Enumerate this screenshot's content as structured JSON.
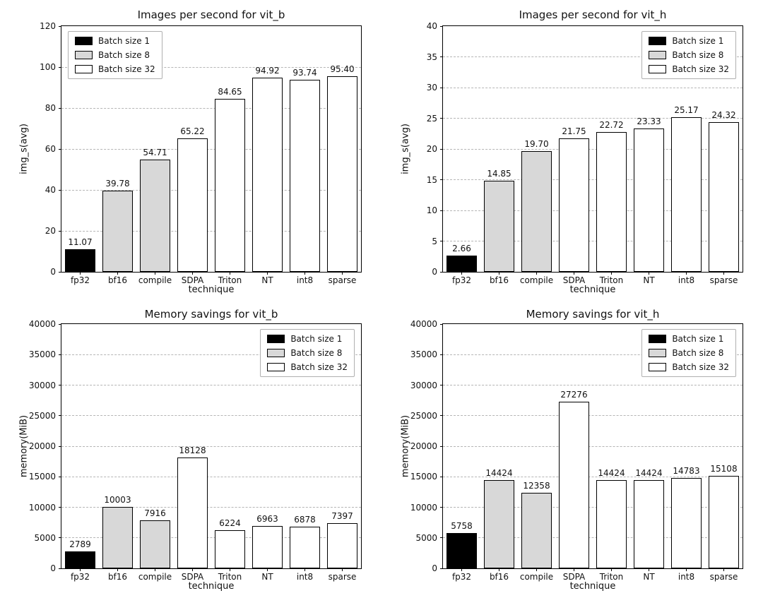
{
  "page": {
    "background": "#ffffff"
  },
  "colors": {
    "batch1": "#000000",
    "batch8": "#d8d8d8",
    "batch32": "#ffffff",
    "bar_edge": "#000000",
    "grid": "#b5b5b5"
  },
  "legend": {
    "entries": [
      {
        "label": "Batch size 1",
        "color_key": "batch1"
      },
      {
        "label": "Batch size 8",
        "color_key": "batch8"
      },
      {
        "label": "Batch size 32",
        "color_key": "batch32"
      }
    ]
  },
  "chart_data": [
    {
      "type": "bar",
      "title": "Images per second for vit_b",
      "xlabel": "technique",
      "ylabel": "img_s(avg)",
      "categories": [
        "fp32",
        "bf16",
        "compile",
        "SDPA",
        "Triton",
        "NT",
        "int8",
        "sparse"
      ],
      "values": [
        11.07,
        39.78,
        54.71,
        65.22,
        84.65,
        94.92,
        93.74,
        95.4
      ],
      "value_labels": [
        "11.07",
        "39.78",
        "54.71",
        "65.22",
        "84.65",
        "94.92",
        "93.74",
        "95.40"
      ],
      "bar_batch": [
        "batch1",
        "batch8",
        "batch8",
        "batch32",
        "batch32",
        "batch32",
        "batch32",
        "batch32"
      ],
      "ylim": [
        0,
        120
      ],
      "yticks": [
        0,
        20,
        40,
        60,
        80,
        100,
        120
      ],
      "grid": true,
      "legend_position": "top-left"
    },
    {
      "type": "bar",
      "title": "Images per second for vit_h",
      "xlabel": "technique",
      "ylabel": "img_s(avg)",
      "categories": [
        "fp32",
        "bf16",
        "compile",
        "SDPA",
        "Triton",
        "NT",
        "int8",
        "sparse"
      ],
      "values": [
        2.66,
        14.85,
        19.7,
        21.75,
        22.72,
        23.33,
        25.17,
        24.32
      ],
      "value_labels": [
        "2.66",
        "14.85",
        "19.70",
        "21.75",
        "22.72",
        "23.33",
        "25.17",
        "24.32"
      ],
      "bar_batch": [
        "batch1",
        "batch8",
        "batch8",
        "batch32",
        "batch32",
        "batch32",
        "batch32",
        "batch32"
      ],
      "ylim": [
        0,
        40
      ],
      "yticks": [
        0,
        5,
        10,
        15,
        20,
        25,
        30,
        35,
        40
      ],
      "grid": true,
      "legend_position": "top-right"
    },
    {
      "type": "bar",
      "title": "Memory savings for vit_b",
      "xlabel": "technique",
      "ylabel": "memory(MiB)",
      "categories": [
        "fp32",
        "bf16",
        "compile",
        "SDPA",
        "Triton",
        "NT",
        "int8",
        "sparse"
      ],
      "values": [
        2789,
        10003,
        7916,
        18128,
        6224,
        6963,
        6878,
        7397
      ],
      "value_labels": [
        "2789",
        "10003",
        "7916",
        "18128",
        "6224",
        "6963",
        "6878",
        "7397"
      ],
      "bar_batch": [
        "batch1",
        "batch8",
        "batch8",
        "batch32",
        "batch32",
        "batch32",
        "batch32",
        "batch32"
      ],
      "ylim": [
        0,
        40000
      ],
      "yticks": [
        0,
        5000,
        10000,
        15000,
        20000,
        25000,
        30000,
        35000,
        40000
      ],
      "grid": true,
      "legend_position": "top-right"
    },
    {
      "type": "bar",
      "title": "Memory savings for vit_h",
      "xlabel": "technique",
      "ylabel": "memory(MiB)",
      "categories": [
        "fp32",
        "bf16",
        "compile",
        "SDPA",
        "Triton",
        "NT",
        "int8",
        "sparse"
      ],
      "values": [
        5758,
        14424,
        12358,
        27276,
        14424,
        14424,
        14783,
        15108
      ],
      "value_labels": [
        "5758",
        "14424",
        "12358",
        "27276",
        "14424",
        "14424",
        "14783",
        "15108"
      ],
      "bar_batch": [
        "batch1",
        "batch8",
        "batch8",
        "batch32",
        "batch32",
        "batch32",
        "batch32",
        "batch32"
      ],
      "ylim": [
        0,
        40000
      ],
      "yticks": [
        0,
        5000,
        10000,
        15000,
        20000,
        25000,
        30000,
        35000,
        40000
      ],
      "grid": true,
      "legend_position": "top-right"
    }
  ]
}
